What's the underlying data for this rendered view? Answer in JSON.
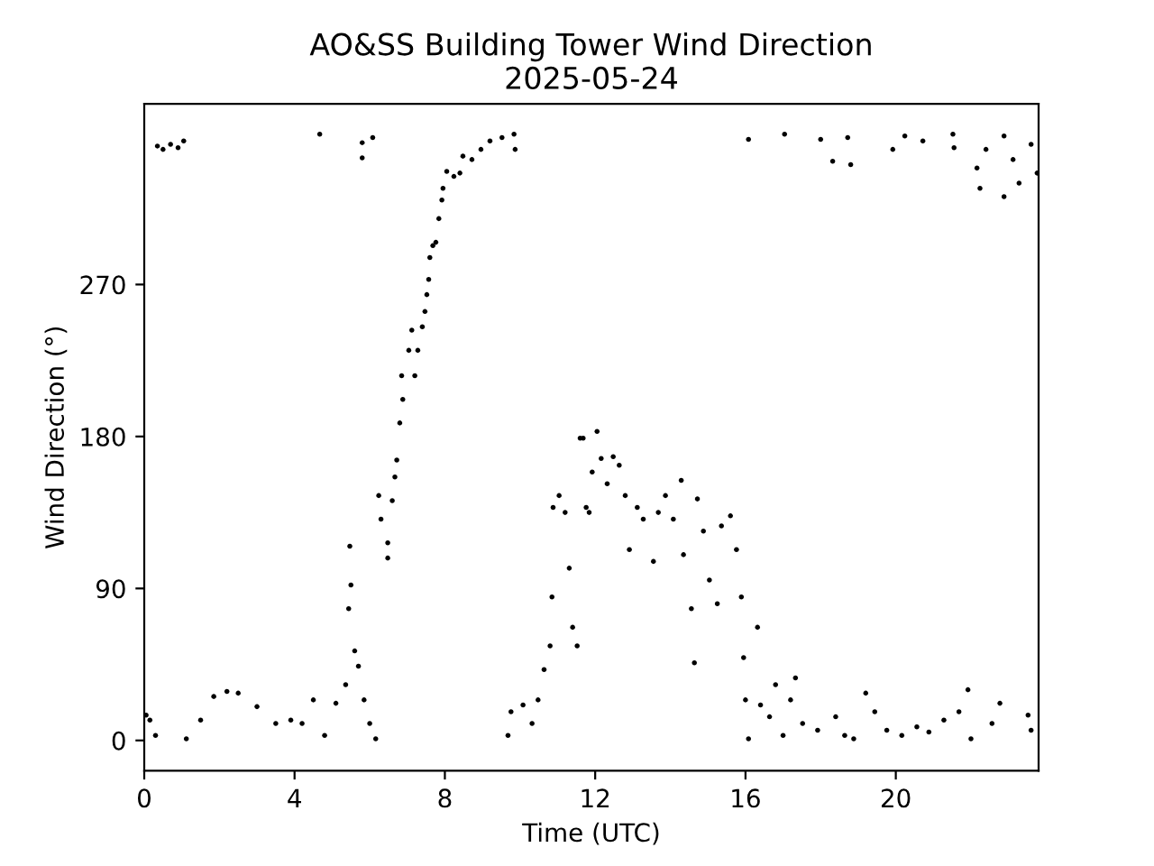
{
  "chart_data": {
    "type": "scatter",
    "title": "AO&SS Building Tower Wind Direction\n2025-05-24",
    "xlabel": "Time (UTC)",
    "ylabel": "Wind Direction (°)",
    "x": [
      0.05,
      0.15,
      0.3,
      0.35,
      0.5,
      0.7,
      0.9,
      1.05,
      1.12,
      1.5,
      1.85,
      2.2,
      2.5,
      3.0,
      3.5,
      3.9,
      4.2,
      4.5,
      4.8,
      5.1,
      5.36,
      5.44,
      5.47,
      5.5,
      5.6,
      5.7,
      5.85,
      6.0,
      6.16,
      4.67,
      5.8,
      5.8,
      6.08,
      6.24,
      6.3,
      6.48,
      6.48,
      6.6,
      6.67,
      6.72,
      6.8,
      6.88,
      6.85,
      7.04,
      7.12,
      7.2,
      7.28,
      7.4,
      7.47,
      7.52,
      7.57,
      7.6,
      7.68,
      7.76,
      7.84,
      7.92,
      7.95,
      8.05,
      8.24,
      8.4,
      8.48,
      8.72,
      8.96,
      9.2,
      9.52,
      9.84,
      9.87,
      9.68,
      9.76,
      10.08,
      10.32,
      10.48,
      10.64,
      10.8,
      10.85,
      10.88,
      11.04,
      11.2,
      11.31,
      11.4,
      11.52,
      11.6,
      11.68,
      11.76,
      11.84,
      11.92,
      12.05,
      12.16,
      12.32,
      12.48,
      12.64,
      12.8,
      12.91,
      13.12,
      13.28,
      13.55,
      13.68,
      13.87,
      14.08,
      14.29,
      14.35,
      14.56,
      14.64,
      14.72,
      14.88,
      15.04,
      15.25,
      15.36,
      15.6,
      15.76,
      15.89,
      15.95,
      16.0,
      16.08,
      16.32,
      16.4,
      16.64,
      16.8,
      17.0,
      17.2,
      17.33,
      17.52,
      17.92,
      18.4,
      18.64,
      18.88,
      19.2,
      19.44,
      19.76,
      20.16,
      20.56,
      20.88,
      21.28,
      21.68,
      21.92,
      22.0,
      22.56,
      22.77,
      23.52,
      23.6,
      16.08,
      17.04,
      18.0,
      18.32,
      18.8,
      18.72,
      19.92,
      20.24,
      20.72,
      21.52,
      21.55,
      22.16,
      22.24,
      22.4,
      22.88,
      22.88,
      23.12,
      23.28,
      23.6,
      23.76
    ],
    "values": [
      15,
      12,
      3,
      352,
      350,
      353,
      351,
      355,
      1,
      12,
      26,
      29,
      28,
      20,
      10,
      12,
      10,
      24,
      3,
      22,
      33,
      78,
      115,
      92,
      53,
      44,
      24,
      10,
      1,
      359,
      354,
      345,
      357,
      145,
      131,
      117,
      108,
      142,
      156,
      166,
      188,
      202,
      216,
      231,
      243,
      216,
      231,
      245,
      254,
      264,
      273,
      286,
      293,
      295,
      309,
      320,
      327,
      337,
      334,
      336,
      346,
      344,
      350,
      355,
      357,
      359,
      350,
      3,
      17,
      21,
      10,
      24,
      42,
      56,
      85,
      138,
      145,
      135,
      102,
      67,
      56,
      179,
      179,
      138,
      135,
      159,
      183,
      167,
      152,
      168,
      163,
      145,
      113,
      138,
      131,
      106,
      135,
      145,
      131,
      154,
      110,
      78,
      46,
      143,
      124,
      95,
      81,
      127,
      133,
      113,
      85,
      49,
      24,
      1,
      67,
      21,
      14,
      33,
      3,
      24,
      37,
      10,
      6,
      14,
      3,
      1,
      28,
      17,
      6,
      3,
      8,
      5,
      12,
      17,
      30,
      1,
      10,
      22,
      15,
      6,
      356,
      359,
      356,
      343,
      341,
      357,
      350,
      358,
      355,
      359,
      351,
      339,
      327,
      350,
      322,
      358,
      344,
      330,
      353,
      336
    ],
    "color": "#000000",
    "marker": "circle",
    "xlim": [
      0,
      23.8
    ],
    "xticks": [
      0,
      4,
      8,
      12,
      16,
      20
    ],
    "ylim": [
      -17.95,
      376.95
    ],
    "yticks": [
      0,
      90,
      180,
      270
    ],
    "grid": false,
    "legend": false
  }
}
